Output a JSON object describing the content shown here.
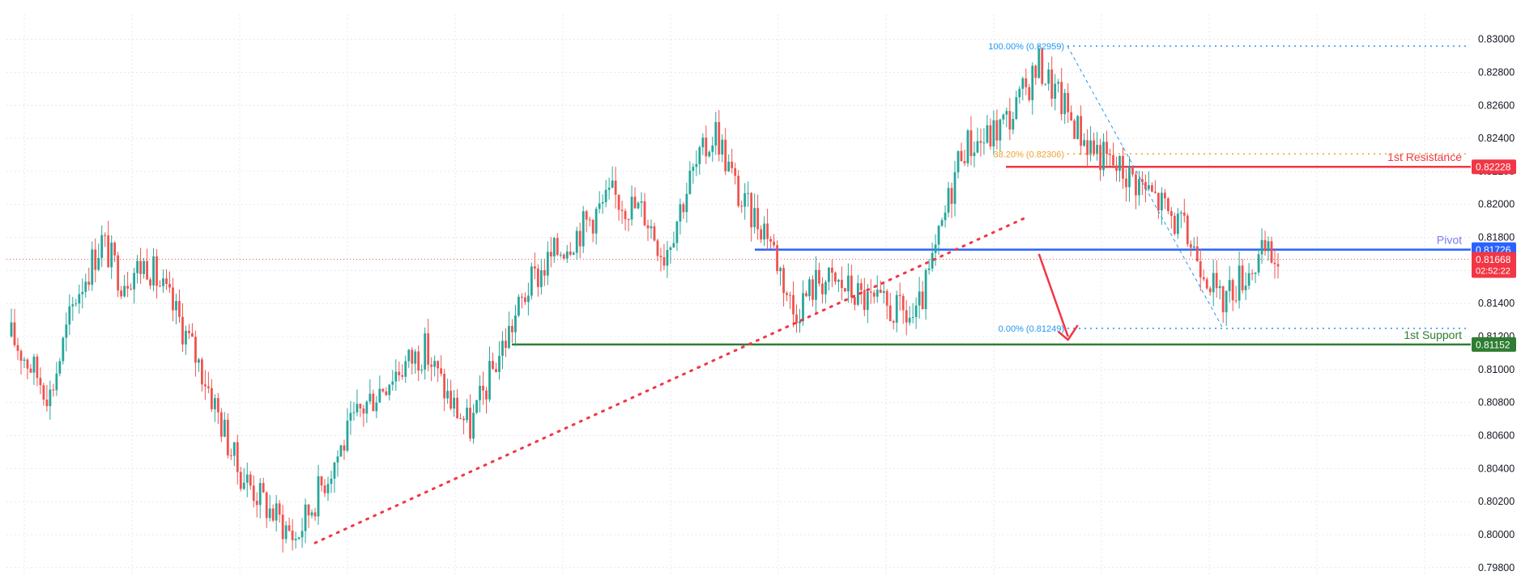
{
  "chart_data": {
    "type": "candlestick",
    "title": "",
    "xlabel": "",
    "ylabel": "",
    "ylim": [
      0.7975,
      0.8315
    ],
    "y_ticks": [
      "0.83000",
      "0.82800",
      "0.82600",
      "0.82400",
      "0.82200",
      "0.82000",
      "0.81800",
      "0.81600",
      "0.81400",
      "0.81200",
      "0.81000",
      "0.80800",
      "0.80600",
      "0.80400",
      "0.80200",
      "0.80000",
      "0.79800"
    ],
    "grid": true,
    "colors": {
      "up": "#26a69a",
      "down": "#ef5350",
      "resistance": "#f23645",
      "pivot": "#2962ff",
      "support": "#2e7d32",
      "pivot_label": "#7b7bf0",
      "fib": "#2196f3",
      "fib_mid": "#f0a030",
      "trend": "#f23645"
    },
    "trend_anchors": [
      [
        0,
        0.812
      ],
      [
        12,
        0.8085
      ],
      [
        20,
        0.8145
      ],
      [
        28,
        0.8178
      ],
      [
        34,
        0.8155
      ],
      [
        42,
        0.8165
      ],
      [
        52,
        0.813
      ],
      [
        60,
        0.8095
      ],
      [
        70,
        0.804
      ],
      [
        80,
        0.8015
      ],
      [
        88,
        0.7998
      ],
      [
        96,
        0.803
      ],
      [
        108,
        0.8075
      ],
      [
        118,
        0.8098
      ],
      [
        128,
        0.8112
      ],
      [
        136,
        0.808
      ],
      [
        142,
        0.8065
      ],
      [
        150,
        0.8105
      ],
      [
        160,
        0.815
      ],
      [
        168,
        0.817
      ],
      [
        176,
        0.8185
      ],
      [
        186,
        0.8205
      ],
      [
        196,
        0.8195
      ],
      [
        202,
        0.817
      ],
      [
        210,
        0.8215
      ],
      [
        218,
        0.8245
      ],
      [
        226,
        0.82
      ],
      [
        234,
        0.8185
      ],
      [
        242,
        0.8135
      ],
      [
        250,
        0.8155
      ],
      [
        258,
        0.815
      ],
      [
        266,
        0.814
      ],
      [
        274,
        0.8135
      ],
      [
        280,
        0.813
      ],
      [
        286,
        0.817
      ],
      [
        294,
        0.8235
      ],
      [
        302,
        0.824
      ],
      [
        310,
        0.8255
      ],
      [
        318,
        0.8285
      ],
      [
        324,
        0.8265
      ],
      [
        332,
        0.824
      ],
      [
        340,
        0.8225
      ],
      [
        348,
        0.8215
      ],
      [
        356,
        0.82
      ],
      [
        364,
        0.818
      ],
      [
        370,
        0.816
      ],
      [
        374,
        0.814
      ],
      [
        380,
        0.8155
      ],
      [
        388,
        0.817
      ],
      [
        392,
        0.8165
      ]
    ],
    "candle_count": 393,
    "current_price": "0.81668",
    "countdown": "02:52:22",
    "levels": [
      {
        "name": "1st Resistance",
        "value": 0.82228,
        "value_label": "0.82228"
      },
      {
        "name": "Pivot",
        "value": 0.81726,
        "value_label": "0.81726"
      },
      {
        "name": "1st Support",
        "value": 0.81152,
        "value_label": "0.81152"
      }
    ],
    "fibonacci": [
      {
        "label": "100.00% (0.82959)",
        "value": 0.82959
      },
      {
        "label": "38.20% (0.82306)",
        "value": 0.82306
      },
      {
        "label": "0.00% (0.81249)",
        "value": 0.81249
      }
    ],
    "trendline": {
      "from_index": 94,
      "from_value": 0.7995,
      "to_index": 315,
      "to_value": 0.8193
    },
    "projection_arrow": {
      "from_index": 318,
      "from_value": 0.817,
      "to_index": 327,
      "to_value": 0.812
    }
  }
}
